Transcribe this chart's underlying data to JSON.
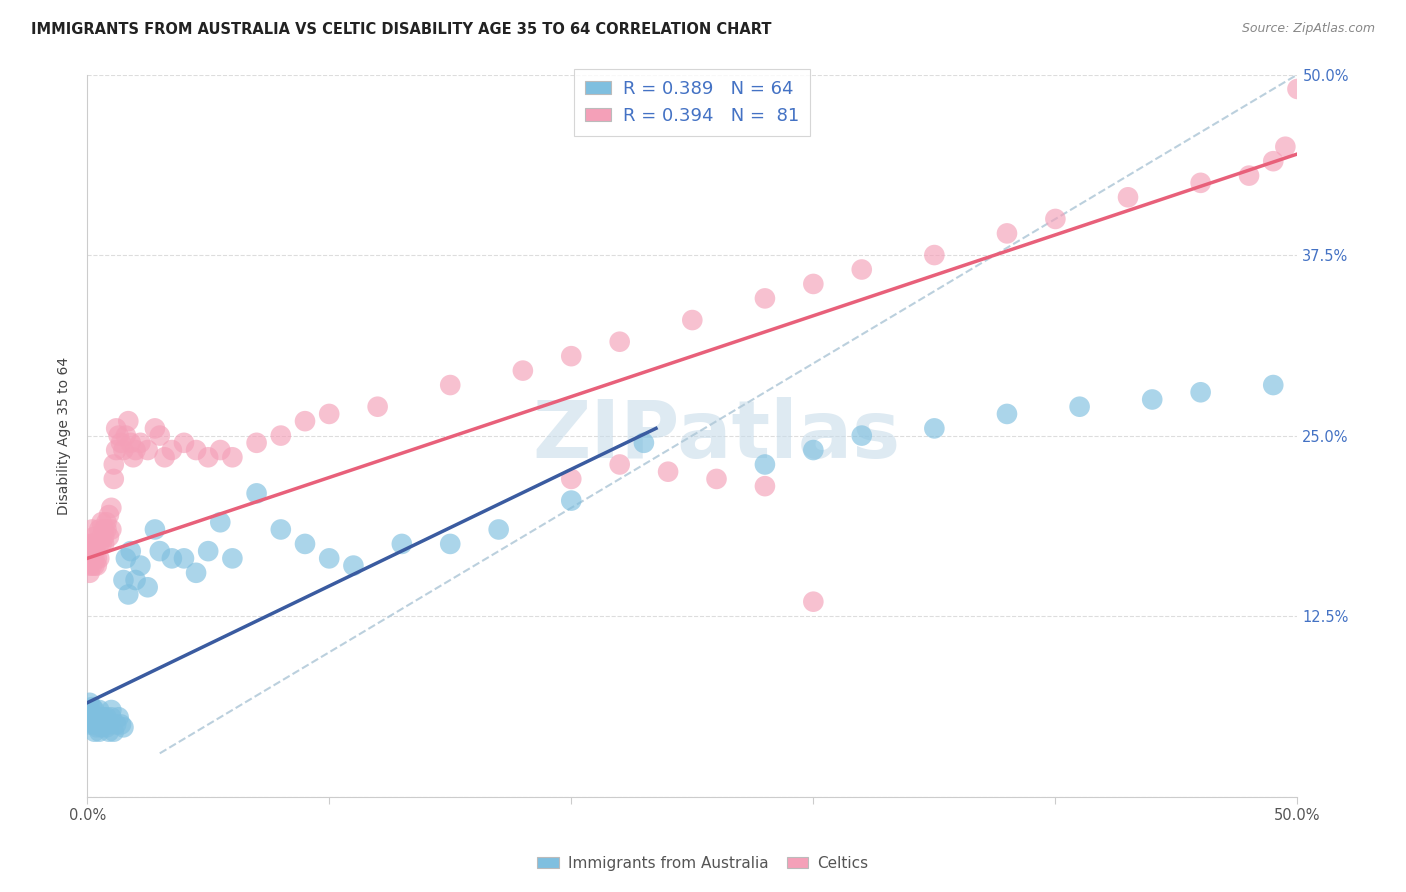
{
  "title": "IMMIGRANTS FROM AUSTRALIA VS CELTIC DISABILITY AGE 35 TO 64 CORRELATION CHART",
  "source": "Source: ZipAtlas.com",
  "ylabel": "Disability Age 35 to 64",
  "xlim": [
    0.0,
    0.5
  ],
  "ylim": [
    0.0,
    0.5
  ],
  "xtick_positions": [
    0.0,
    0.1,
    0.2,
    0.3,
    0.4,
    0.5
  ],
  "xtick_labels": [
    "0.0%",
    "",
    "",
    "",
    "",
    "50.0%"
  ],
  "ytick_positions": [
    0.0,
    0.125,
    0.25,
    0.375,
    0.5
  ],
  "ytick_labels_right": [
    "",
    "12.5%",
    "25.0%",
    "37.5%",
    "50.0%"
  ],
  "blue_color": "#7fbfdf",
  "pink_color": "#f4a0b8",
  "line_blue_color": "#3a5ba0",
  "line_pink_color": "#e8607a",
  "dash_color": "#b0c8d8",
  "watermark_color": "#c8dcea",
  "title_color": "#222222",
  "source_color": "#888888",
  "axis_label_color": "#444444",
  "right_tick_color": "#4472c4",
  "bottom_tick_color": "#555555",
  "legend_text_color": "#4472c4",
  "legend_label1": "R = 0.389   N = 64",
  "legend_label2": "R = 0.394   N =  81",
  "blue_line_x0": 0.0,
  "blue_line_y0": 0.065,
  "blue_line_x1": 0.235,
  "blue_line_y1": 0.255,
  "pink_line_x0": 0.0,
  "pink_line_y0": 0.165,
  "pink_line_x1": 0.5,
  "pink_line_y1": 0.445,
  "blue_dots": {
    "x": [
      0.001,
      0.001,
      0.001,
      0.002,
      0.002,
      0.002,
      0.003,
      0.003,
      0.003,
      0.003,
      0.004,
      0.004,
      0.005,
      0.005,
      0.005,
      0.006,
      0.006,
      0.007,
      0.007,
      0.008,
      0.008,
      0.009,
      0.009,
      0.01,
      0.01,
      0.011,
      0.012,
      0.013,
      0.014,
      0.015,
      0.015,
      0.016,
      0.017,
      0.018,
      0.02,
      0.022,
      0.025,
      0.028,
      0.03,
      0.035,
      0.04,
      0.045,
      0.05,
      0.055,
      0.06,
      0.07,
      0.08,
      0.09,
      0.1,
      0.11,
      0.13,
      0.15,
      0.17,
      0.2,
      0.23,
      0.28,
      0.3,
      0.32,
      0.35,
      0.38,
      0.41,
      0.44,
      0.46,
      0.49
    ],
    "y": [
      0.06,
      0.065,
      0.05,
      0.055,
      0.058,
      0.062,
      0.05,
      0.045,
      0.055,
      0.06,
      0.048,
      0.052,
      0.045,
      0.055,
      0.06,
      0.05,
      0.048,
      0.05,
      0.055,
      0.048,
      0.055,
      0.05,
      0.045,
      0.055,
      0.06,
      0.045,
      0.05,
      0.055,
      0.05,
      0.048,
      0.15,
      0.165,
      0.14,
      0.17,
      0.15,
      0.16,
      0.145,
      0.185,
      0.17,
      0.165,
      0.165,
      0.155,
      0.17,
      0.19,
      0.165,
      0.21,
      0.185,
      0.175,
      0.165,
      0.16,
      0.175,
      0.175,
      0.185,
      0.205,
      0.245,
      0.23,
      0.24,
      0.25,
      0.255,
      0.265,
      0.27,
      0.275,
      0.28,
      0.285
    ]
  },
  "pink_dots": {
    "x": [
      0.001,
      0.001,
      0.001,
      0.001,
      0.002,
      0.002,
      0.002,
      0.002,
      0.003,
      0.003,
      0.003,
      0.003,
      0.004,
      0.004,
      0.004,
      0.005,
      0.005,
      0.005,
      0.006,
      0.006,
      0.006,
      0.007,
      0.007,
      0.007,
      0.008,
      0.008,
      0.009,
      0.009,
      0.01,
      0.01,
      0.011,
      0.011,
      0.012,
      0.012,
      0.013,
      0.014,
      0.015,
      0.016,
      0.017,
      0.018,
      0.019,
      0.02,
      0.022,
      0.025,
      0.028,
      0.03,
      0.032,
      0.035,
      0.04,
      0.045,
      0.05,
      0.055,
      0.06,
      0.07,
      0.08,
      0.09,
      0.1,
      0.12,
      0.15,
      0.18,
      0.2,
      0.22,
      0.25,
      0.28,
      0.3,
      0.32,
      0.35,
      0.38,
      0.4,
      0.43,
      0.46,
      0.48,
      0.49,
      0.495,
      0.5,
      0.3,
      0.28,
      0.26,
      0.24,
      0.22,
      0.2
    ],
    "y": [
      0.16,
      0.17,
      0.155,
      0.175,
      0.165,
      0.175,
      0.185,
      0.16,
      0.17,
      0.18,
      0.16,
      0.165,
      0.175,
      0.165,
      0.16,
      0.175,
      0.185,
      0.165,
      0.18,
      0.19,
      0.175,
      0.185,
      0.175,
      0.18,
      0.19,
      0.185,
      0.18,
      0.195,
      0.185,
      0.2,
      0.22,
      0.23,
      0.24,
      0.255,
      0.25,
      0.245,
      0.24,
      0.25,
      0.26,
      0.245,
      0.235,
      0.24,
      0.245,
      0.24,
      0.255,
      0.25,
      0.235,
      0.24,
      0.245,
      0.24,
      0.235,
      0.24,
      0.235,
      0.245,
      0.25,
      0.26,
      0.265,
      0.27,
      0.285,
      0.295,
      0.305,
      0.315,
      0.33,
      0.345,
      0.355,
      0.365,
      0.375,
      0.39,
      0.4,
      0.415,
      0.425,
      0.43,
      0.44,
      0.45,
      0.49,
      0.135,
      0.215,
      0.22,
      0.225,
      0.23,
      0.22
    ]
  }
}
